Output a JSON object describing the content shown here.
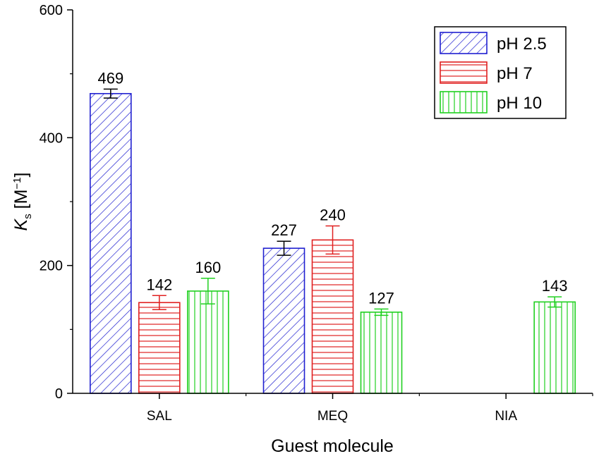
{
  "chart_data": {
    "type": "bar",
    "title": "",
    "xlabel": "Guest molecule",
    "ylabel_main": "K",
    "ylabel_sub": "s",
    "ylabel_unit_open": " [M",
    "ylabel_unit_exp": "−1",
    "ylabel_unit_close": "]",
    "ylim": [
      0,
      600
    ],
    "yticks": [
      0,
      200,
      400,
      600
    ],
    "categories": [
      "SAL",
      "MEQ",
      "NIA"
    ],
    "series": [
      {
        "name": "pH 2.5",
        "color": "#2020d0",
        "pattern": "diagonal",
        "values": [
          469,
          227,
          null
        ],
        "errors": [
          7,
          11,
          null
        ],
        "error_color": "#000000",
        "labels": [
          "469",
          "227",
          null
        ]
      },
      {
        "name": "pH 7",
        "color": "#e02020",
        "pattern": "horizontal",
        "values": [
          142,
          240,
          null
        ],
        "errors": [
          11,
          22,
          null
        ],
        "error_color": "#e02020",
        "labels": [
          "142",
          "240",
          null
        ]
      },
      {
        "name": "pH 10",
        "color": "#20d020",
        "pattern": "vertical",
        "values": [
          160,
          127,
          143
        ],
        "errors": [
          20,
          5,
          8
        ],
        "error_color": "#20d020",
        "labels": [
          "160",
          "127",
          "143"
        ]
      }
    ],
    "legend_position": "top-right",
    "grid": false
  }
}
